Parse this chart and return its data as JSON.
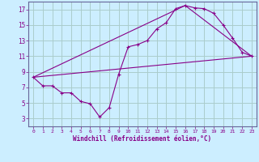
{
  "xlabel": "Windchill (Refroidissement éolien,°C)",
  "bg_color": "#cceeff",
  "grid_color": "#aacccc",
  "line_color": "#880088",
  "spine_color": "#666699",
  "xlim": [
    -0.5,
    23.5
  ],
  "ylim": [
    2,
    18
  ],
  "xticks": [
    0,
    1,
    2,
    3,
    4,
    5,
    6,
    7,
    8,
    9,
    10,
    11,
    12,
    13,
    14,
    15,
    16,
    17,
    18,
    19,
    20,
    21,
    22,
    23
  ],
  "yticks": [
    3,
    5,
    7,
    9,
    11,
    13,
    15,
    17
  ],
  "series1_x": [
    0,
    1,
    2,
    3,
    4,
    5,
    6,
    7,
    8,
    9,
    10,
    11,
    12,
    13,
    14,
    15,
    16,
    17,
    18,
    19,
    20,
    21,
    22,
    23
  ],
  "series1_y": [
    8.3,
    7.2,
    7.2,
    6.3,
    6.3,
    5.2,
    4.9,
    3.2,
    4.4,
    8.7,
    12.2,
    12.5,
    13.0,
    14.5,
    15.3,
    17.1,
    17.5,
    17.2,
    17.1,
    16.5,
    15.0,
    13.3,
    11.5,
    11.0
  ],
  "series2_x": [
    0,
    23
  ],
  "series2_y": [
    8.3,
    11.0
  ],
  "series3_x": [
    0,
    16,
    23
  ],
  "series3_y": [
    8.3,
    17.5,
    11.0
  ]
}
